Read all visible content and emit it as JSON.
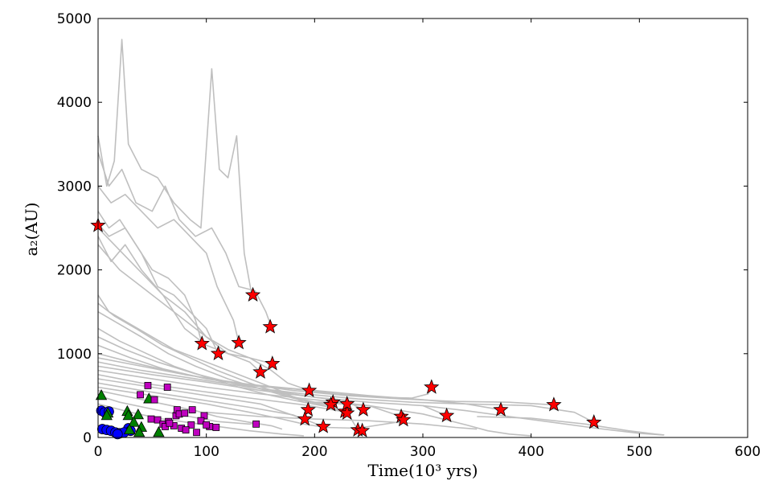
{
  "chart_data": {
    "type": "scatter",
    "title": "",
    "xlabel": "Time(10³ yrs)",
    "ylabel": "a₂(AU)",
    "xlim": [
      0,
      600
    ],
    "ylim": [
      0,
      5000
    ],
    "xticks": [
      "0",
      "100",
      "200",
      "300",
      "400",
      "500",
      "600"
    ],
    "yticks": [
      "0",
      "1000",
      "2000",
      "3000",
      "4000",
      "5000"
    ],
    "grid": false,
    "colors": {
      "trajectory": "#bfbfbf",
      "blue_circle": "#0000ff",
      "green_triangle": "#008000",
      "magenta_square": "#bf00bf",
      "red_star": "#ff0000"
    },
    "trajectories": [
      [
        [
          0,
          3600
        ],
        [
          8,
          3000
        ],
        [
          15,
          3300
        ],
        [
          22,
          4750
        ],
        [
          28,
          3500
        ],
        [
          40,
          3200
        ],
        [
          55,
          3100
        ],
        [
          70,
          2800
        ],
        [
          85,
          2600
        ],
        [
          95,
          2500
        ],
        [
          105,
          4400
        ],
        [
          112,
          3200
        ],
        [
          120,
          3100
        ],
        [
          128,
          3600
        ],
        [
          135,
          2200
        ],
        [
          142,
          1700
        ]
      ],
      [
        [
          0,
          3400
        ],
        [
          10,
          3000
        ],
        [
          22,
          3200
        ],
        [
          35,
          2800
        ],
        [
          50,
          2700
        ],
        [
          62,
          3000
        ],
        [
          75,
          2600
        ],
        [
          90,
          2400
        ],
        [
          105,
          2500
        ],
        [
          118,
          2200
        ],
        [
          130,
          1800
        ],
        [
          145,
          1750
        ],
        [
          155,
          1500
        ],
        [
          160,
          1320
        ]
      ],
      [
        [
          0,
          3000
        ],
        [
          12,
          2800
        ],
        [
          25,
          2900
        ],
        [
          40,
          2700
        ],
        [
          55,
          2500
        ],
        [
          70,
          2600
        ],
        [
          85,
          2400
        ],
        [
          100,
          2200
        ],
        [
          110,
          1800
        ],
        [
          125,
          1400
        ],
        [
          130,
          1130
        ]
      ],
      [
        [
          0,
          2700
        ],
        [
          10,
          2500
        ],
        [
          20,
          2600
        ],
        [
          35,
          2300
        ],
        [
          50,
          2000
        ],
        [
          65,
          1900
        ],
        [
          80,
          1700
        ],
        [
          90,
          1400
        ],
        [
          96,
          1120
        ]
      ],
      [
        [
          0,
          2550
        ],
        [
          10,
          2400
        ],
        [
          25,
          2500
        ],
        [
          40,
          2200
        ],
        [
          55,
          1800
        ],
        [
          70,
          1700
        ],
        [
          85,
          1500
        ],
        [
          100,
          1300
        ],
        [
          111,
          1000
        ]
      ],
      [
        [
          0,
          2500
        ],
        [
          15,
          2300
        ],
        [
          30,
          2100
        ],
        [
          45,
          1900
        ],
        [
          60,
          1700
        ],
        [
          80,
          1500
        ],
        [
          100,
          1200
        ],
        [
          120,
          1000
        ],
        [
          140,
          900
        ],
        [
          150,
          780
        ]
      ],
      [
        [
          0,
          2400
        ],
        [
          12,
          2100
        ],
        [
          25,
          2300
        ],
        [
          40,
          2000
        ],
        [
          60,
          1700
        ],
        [
          80,
          1300
        ],
        [
          100,
          1100
        ],
        [
          120,
          1000
        ],
        [
          140,
          950
        ],
        [
          161,
          880
        ]
      ],
      [
        [
          0,
          2300
        ],
        [
          20,
          2000
        ],
        [
          40,
          1800
        ],
        [
          60,
          1600
        ],
        [
          80,
          1400
        ],
        [
          100,
          1200
        ],
        [
          120,
          1050
        ],
        [
          140,
          950
        ],
        [
          160,
          800
        ],
        [
          175,
          650
        ],
        [
          195,
          560
        ]
      ],
      [
        [
          0,
          1700
        ],
        [
          10,
          1500
        ],
        [
          30,
          1350
        ],
        [
          50,
          1200
        ],
        [
          70,
          1050
        ],
        [
          90,
          950
        ],
        [
          110,
          850
        ],
        [
          130,
          750
        ],
        [
          150,
          650
        ],
        [
          170,
          550
        ],
        [
          190,
          420
        ],
        [
          217,
          420
        ]
      ],
      [
        [
          0,
          1600
        ],
        [
          15,
          1450
        ],
        [
          35,
          1300
        ],
        [
          60,
          1100
        ],
        [
          85,
          950
        ],
        [
          110,
          800
        ],
        [
          140,
          650
        ],
        [
          170,
          520
        ],
        [
          200,
          420
        ],
        [
          215,
          390
        ]
      ],
      [
        [
          0,
          1500
        ],
        [
          20,
          1350
        ],
        [
          40,
          1200
        ],
        [
          65,
          1000
        ],
        [
          90,
          850
        ],
        [
          120,
          700
        ],
        [
          150,
          580
        ],
        [
          180,
          470
        ],
        [
          210,
          380
        ],
        [
          228,
          310
        ]
      ],
      [
        [
          0,
          1300
        ],
        [
          20,
          1150
        ],
        [
          45,
          1000
        ],
        [
          70,
          850
        ],
        [
          100,
          720
        ],
        [
          130,
          600
        ],
        [
          160,
          500
        ],
        [
          190,
          420
        ],
        [
          215,
          360
        ],
        [
          230,
          290
        ]
      ],
      [
        [
          0,
          1200
        ],
        [
          25,
          1050
        ],
        [
          55,
          900
        ],
        [
          90,
          760
        ],
        [
          130,
          630
        ],
        [
          170,
          540
        ],
        [
          200,
          480
        ],
        [
          230,
          430
        ],
        [
          245,
          330
        ]
      ],
      [
        [
          0,
          1100
        ],
        [
          30,
          950
        ],
        [
          60,
          820
        ],
        [
          100,
          700
        ],
        [
          140,
          620
        ],
        [
          180,
          580
        ],
        [
          220,
          520
        ],
        [
          260,
          480
        ],
        [
          290,
          470
        ],
        [
          305,
          520
        ],
        [
          308,
          600
        ]
      ],
      [
        [
          0,
          1000
        ],
        [
          30,
          900
        ],
        [
          70,
          780
        ],
        [
          110,
          680
        ],
        [
          150,
          620
        ],
        [
          200,
          560
        ],
        [
          250,
          500
        ],
        [
          300,
          450
        ],
        [
          340,
          400
        ],
        [
          372,
          330
        ]
      ],
      [
        [
          0,
          950
        ],
        [
          40,
          850
        ],
        [
          80,
          750
        ],
        [
          130,
          650
        ],
        [
          180,
          560
        ],
        [
          230,
          500
        ],
        [
          280,
          460
        ],
        [
          330,
          430
        ],
        [
          380,
          420
        ],
        [
          421,
          390
        ]
      ],
      [
        [
          0,
          900
        ],
        [
          40,
          800
        ],
        [
          90,
          700
        ],
        [
          140,
          600
        ],
        [
          190,
          520
        ],
        [
          240,
          460
        ],
        [
          290,
          420
        ],
        [
          340,
          400
        ],
        [
          400,
          380
        ],
        [
          440,
          300
        ],
        [
          458,
          180
        ]
      ],
      [
        [
          0,
          850
        ],
        [
          50,
          750
        ],
        [
          100,
          660
        ],
        [
          150,
          560
        ],
        [
          200,
          480
        ],
        [
          250,
          420
        ],
        [
          300,
          380
        ],
        [
          322,
          260
        ]
      ],
      [
        [
          0,
          800
        ],
        [
          50,
          700
        ],
        [
          100,
          600
        ],
        [
          150,
          520
        ],
        [
          200,
          450
        ],
        [
          250,
          380
        ],
        [
          280,
          250
        ]
      ],
      [
        [
          0,
          750
        ],
        [
          40,
          650
        ],
        [
          90,
          560
        ],
        [
          140,
          470
        ],
        [
          190,
          390
        ],
        [
          230,
          300
        ],
        [
          240,
          90
        ]
      ],
      [
        [
          0,
          700
        ],
        [
          50,
          600
        ],
        [
          100,
          500
        ],
        [
          150,
          400
        ],
        [
          190,
          220
        ]
      ],
      [
        [
          0,
          650
        ],
        [
          40,
          560
        ],
        [
          90,
          460
        ],
        [
          140,
          360
        ],
        [
          180,
          270
        ],
        [
          208,
          130
        ]
      ],
      [
        [
          0,
          600
        ],
        [
          50,
          500
        ],
        [
          100,
          400
        ],
        [
          140,
          300
        ],
        [
          170,
          220
        ],
        [
          190,
          160
        ],
        [
          210,
          120
        ],
        [
          240,
          110
        ],
        [
          280,
          190
        ]
      ],
      [
        [
          0,
          560
        ],
        [
          30,
          480
        ],
        [
          60,
          400
        ],
        [
          90,
          320
        ],
        [
          110,
          250
        ],
        [
          140,
          180
        ],
        [
          160,
          140
        ],
        [
          170,
          100
        ]
      ],
      [
        [
          0,
          500
        ],
        [
          20,
          420
        ],
        [
          50,
          340
        ],
        [
          80,
          260
        ],
        [
          110,
          190
        ],
        [
          140,
          160
        ],
        [
          144,
          170
        ]
      ],
      [
        [
          200,
          420
        ],
        [
          250,
          380
        ],
        [
          300,
          280
        ],
        [
          340,
          150
        ],
        [
          360,
          80
        ],
        [
          380,
          40
        ],
        [
          400,
          20
        ]
      ],
      [
        [
          300,
          380
        ],
        [
          340,
          320
        ],
        [
          380,
          250
        ],
        [
          420,
          180
        ],
        [
          460,
          110
        ],
        [
          500,
          50
        ],
        [
          522,
          30
        ]
      ],
      [
        [
          350,
          250
        ],
        [
          400,
          230
        ],
        [
          450,
          160
        ],
        [
          490,
          80
        ],
        [
          515,
          40
        ],
        [
          523,
          30
        ]
      ],
      [
        [
          100,
          300
        ],
        [
          150,
          250
        ],
        [
          200,
          220
        ],
        [
          250,
          200
        ],
        [
          300,
          160
        ],
        [
          330,
          120
        ],
        [
          350,
          100
        ]
      ],
      [
        [
          0,
          400
        ],
        [
          30,
          300
        ],
        [
          60,
          220
        ],
        [
          100,
          150
        ],
        [
          140,
          80
        ],
        [
          170,
          40
        ],
        [
          190,
          20
        ]
      ]
    ],
    "series": [
      {
        "name": "blue circles",
        "marker": "circle",
        "points": [
          [
            3,
            320
          ],
          [
            6,
            300
          ],
          [
            10,
            310
          ],
          [
            4,
            100
          ],
          [
            8,
            90
          ],
          [
            12,
            80
          ],
          [
            16,
            60
          ],
          [
            20,
            50
          ],
          [
            28,
            110
          ],
          [
            30,
            80
          ],
          [
            24,
            60
          ],
          [
            18,
            40
          ]
        ]
      },
      {
        "name": "green triangles",
        "marker": "triangle",
        "points": [
          [
            3,
            500
          ],
          [
            9,
            290
          ],
          [
            8,
            260
          ],
          [
            27,
            310
          ],
          [
            28,
            260
          ],
          [
            37,
            270
          ],
          [
            33,
            180
          ],
          [
            47,
            460
          ],
          [
            40,
            120
          ],
          [
            56,
            60
          ],
          [
            29,
            90
          ],
          [
            38,
            60
          ]
        ]
      },
      {
        "name": "magenta squares",
        "marker": "square",
        "points": [
          [
            46,
            620
          ],
          [
            64,
            600
          ],
          [
            39,
            510
          ],
          [
            52,
            450
          ],
          [
            49,
            220
          ],
          [
            55,
            210
          ],
          [
            60,
            160
          ],
          [
            65,
            190
          ],
          [
            72,
            260
          ],
          [
            73,
            330
          ],
          [
            75,
            280
          ],
          [
            80,
            290
          ],
          [
            87,
            330
          ],
          [
            98,
            260
          ],
          [
            95,
            200
          ],
          [
            86,
            150
          ],
          [
            70,
            140
          ],
          [
            77,
            110
          ],
          [
            81,
            90
          ],
          [
            91,
            60
          ],
          [
            109,
            120
          ],
          [
            103,
            130
          ],
          [
            100,
            150
          ],
          [
            146,
            160
          ],
          [
            62,
            130
          ],
          [
            66,
            170
          ]
        ]
      },
      {
        "name": "red stars",
        "marker": "star",
        "points": [
          [
            0,
            2530
          ],
          [
            143,
            1700
          ],
          [
            159,
            1320
          ],
          [
            96,
            1120
          ],
          [
            130,
            1130
          ],
          [
            111,
            1000
          ],
          [
            161,
            880
          ],
          [
            150,
            780
          ],
          [
            195,
            560
          ],
          [
            308,
            600
          ],
          [
            421,
            390
          ],
          [
            217,
            420
          ],
          [
            215,
            390
          ],
          [
            228,
            310
          ],
          [
            230,
            290
          ],
          [
            230,
            400
          ],
          [
            245,
            330
          ],
          [
            194,
            330
          ],
          [
            191,
            220
          ],
          [
            208,
            130
          ],
          [
            240,
            90
          ],
          [
            244,
            80
          ],
          [
            280,
            250
          ],
          [
            282,
            210
          ],
          [
            322,
            260
          ],
          [
            372,
            330
          ],
          [
            458,
            180
          ]
        ]
      }
    ]
  }
}
